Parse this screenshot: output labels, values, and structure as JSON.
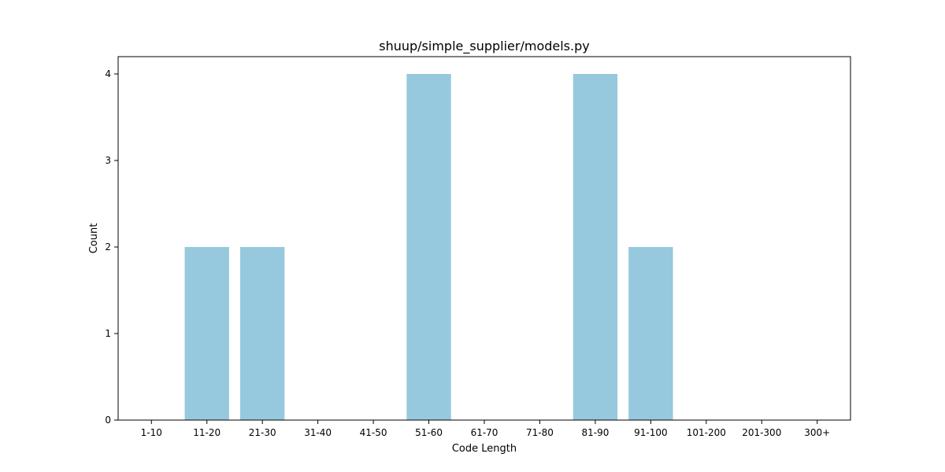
{
  "chart_data": {
    "type": "bar",
    "title": "shuup/simple_supplier/models.py",
    "xlabel": "Code Length",
    "ylabel": "Count",
    "categories": [
      "1-10",
      "11-20",
      "21-30",
      "31-40",
      "41-50",
      "51-60",
      "61-70",
      "71-80",
      "81-90",
      "91-100",
      "101-200",
      "201-300",
      "300+"
    ],
    "values": [
      0,
      2,
      2,
      0,
      0,
      4,
      0,
      0,
      4,
      2,
      0,
      0,
      0
    ],
    "ylim": [
      0,
      4.2
    ],
    "yticks": [
      0,
      1,
      2,
      3,
      4
    ],
    "grid": false,
    "bar_color": "#96c9dd"
  }
}
